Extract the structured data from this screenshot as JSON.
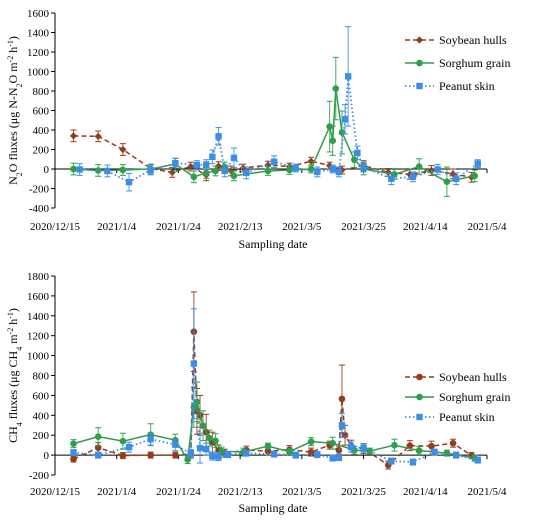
{
  "chart_data": [
    {
      "type": "line",
      "title": "",
      "xlabel": "Sampling date",
      "ylabel": [
        "N",
        "2",
        "O fluxes (μg N-N",
        "2",
        "O m",
        "-2",
        " h",
        "-1",
        ")"
      ],
      "x_type": "date",
      "x_ticks": [
        "2020/12/15",
        "2021/1/4",
        "2021/1/24",
        "2021/2/13",
        "2021/3/5",
        "2021/3/25",
        "2021/4/14",
        "2021/5/4"
      ],
      "xlim": [
        "2020/12/15",
        "2021/5/4"
      ],
      "ylim": [
        -400,
        1600
      ],
      "y_ticks": [
        -400,
        -200,
        0,
        200,
        400,
        600,
        800,
        1000,
        1200,
        1400,
        1600
      ],
      "grid": false,
      "legend_position": "top-right",
      "series": [
        {
          "name": "Soybean hulls",
          "color": "#943C1B",
          "marker": "diamond",
          "line": "dashed",
          "x": [
            "2020/12/21",
            "2020/12/29",
            "2021/1/6",
            "2021/1/15",
            "2021/1/22",
            "2021/1/28",
            "2021/2/2",
            "2021/2/6",
            "2021/2/10",
            "2021/2/14",
            "2021/2/22",
            "2021/3/1",
            "2021/3/8",
            "2021/3/14",
            "2021/3/18",
            "2021/3/25",
            "2021/4/2",
            "2021/4/9",
            "2021/4/16",
            "2021/4/23",
            "2021/4/29"
          ],
          "y": [
            340,
            335,
            200,
            5,
            -35,
            25,
            -60,
            30,
            -20,
            10,
            40,
            25,
            80,
            35,
            -10,
            35,
            -35,
            -55,
            -15,
            -50,
            -85
          ],
          "err": [
            60,
            55,
            60,
            40,
            50,
            45,
            60,
            45,
            50,
            40,
            40,
            35,
            40,
            35,
            40,
            50,
            40,
            50,
            50,
            50,
            50
          ]
        },
        {
          "name": "Sorghum grain",
          "color": "#2E9E4B",
          "marker": "circle",
          "line": "solid",
          "x": [
            "2020/12/21",
            "2020/12/29",
            "2021/1/6",
            "2021/1/15",
            "2021/1/23",
            "2021/1/29",
            "2021/2/2",
            "2021/2/5",
            "2021/2/8",
            "2021/2/11",
            "2021/2/22",
            "2021/3/1",
            "2021/3/8",
            "2021/3/14",
            "2021/3/15",
            "2021/3/16",
            "2021/3/18",
            "2021/3/22",
            "2021/3/25",
            "2021/4/4",
            "2021/4/12",
            "2021/4/21",
            "2021/4/30"
          ],
          "y": [
            0,
            -15,
            -10,
            0,
            50,
            -80,
            -40,
            -20,
            20,
            -70,
            -20,
            -10,
            0,
            435,
            290,
            825,
            375,
            95,
            0,
            -55,
            25,
            -130,
            -70
          ],
          "err": [
            60,
            60,
            55,
            50,
            60,
            60,
            55,
            50,
            50,
            50,
            45,
            45,
            40,
            260,
            150,
            320,
            220,
            80,
            60,
            50,
            80,
            150,
            60
          ]
        },
        {
          "name": "Peanut skin",
          "color": "#3C8DE6",
          "marker": "square",
          "line": "dotted",
          "x": [
            "2020/12/23",
            "2021/1/1",
            "2021/1/8",
            "2021/1/15",
            "2021/1/23",
            "2021/1/30",
            "2021/2/2",
            "2021/2/4",
            "2021/2/6",
            "2021/2/8",
            "2021/2/11",
            "2021/2/15",
            "2021/2/24",
            "2021/3/3",
            "2021/3/10",
            "2021/3/15",
            "2021/3/17",
            "2021/3/19",
            "2021/3/20",
            "2021/3/23",
            "2021/3/25",
            "2021/4/3",
            "2021/4/10",
            "2021/4/18",
            "2021/4/24",
            "2021/5/1"
          ],
          "y": [
            -5,
            -20,
            -135,
            -10,
            60,
            40,
            45,
            125,
            335,
            -20,
            115,
            -40,
            75,
            10,
            -30,
            0,
            -30,
            510,
            950,
            165,
            20,
            -100,
            -80,
            -5,
            -100,
            55
          ],
          "err": [
            60,
            60,
            90,
            50,
            50,
            45,
            50,
            70,
            90,
            60,
            100,
            60,
            60,
            40,
            50,
            40,
            50,
            150,
            510,
            70,
            50,
            60,
            50,
            50,
            60,
            40
          ]
        }
      ]
    },
    {
      "type": "line",
      "title": "",
      "xlabel": "Sampling date",
      "ylabel": [
        "CH",
        "4",
        " fluxes (μg CH",
        "4",
        " m",
        "-2",
        " h",
        "-1",
        ")"
      ],
      "x_type": "date",
      "x_ticks": [
        "2020/12/15",
        "2021/1/4",
        "2021/1/24",
        "2021/2/13",
        "2021/3/5",
        "2021/3/25",
        "2021/4/14",
        "2021/5/4"
      ],
      "xlim": [
        "2020/12/15",
        "2021/5/4"
      ],
      "ylim": [
        -200,
        1800
      ],
      "y_ticks": [
        -200,
        0,
        200,
        400,
        600,
        800,
        1000,
        1200,
        1400,
        1600,
        1800
      ],
      "grid": false,
      "legend_position": "right",
      "series": [
        {
          "name": "Soybean hulls",
          "color": "#943C1B",
          "marker": "circle",
          "line": "dashed",
          "x": [
            "2020/12/21",
            "2020/12/29",
            "2021/1/6",
            "2021/1/15",
            "2021/1/23",
            "2021/1/28",
            "2021/1/29",
            "2021/1/30",
            "2021/1/31",
            "2021/2/2",
            "2021/2/4",
            "2021/2/6",
            "2021/2/8",
            "2021/2/15",
            "2021/2/22",
            "2021/3/1",
            "2021/3/8",
            "2021/3/14",
            "2021/3/17",
            "2021/3/18",
            "2021/3/19",
            "2021/3/21",
            "2021/3/25",
            "2021/4/2",
            "2021/4/9",
            "2021/4/16",
            "2021/4/23",
            "2021/4/29"
          ],
          "y": [
            -40,
            75,
            -5,
            0,
            0,
            10,
            1240,
            440,
            400,
            230,
            130,
            50,
            20,
            50,
            40,
            55,
            30,
            100,
            50,
            565,
            200,
            90,
            65,
            -100,
            95,
            90,
            120,
            -5
          ],
          "err": [
            30,
            50,
            30,
            30,
            30,
            40,
            400,
            230,
            200,
            180,
            100,
            50,
            40,
            40,
            40,
            40,
            40,
            40,
            40,
            340,
            100,
            60,
            50,
            40,
            50,
            50,
            40,
            30
          ]
        },
        {
          "name": "Sorghum grain",
          "color": "#2E9E4B",
          "marker": "circle",
          "line": "solid",
          "x": [
            "2020/12/21",
            "2020/12/29",
            "2021/1/6",
            "2021/1/15",
            "2021/1/23",
            "2021/1/27",
            "2021/1/29",
            "2021/1/30",
            "2021/2/1",
            "2021/2/3",
            "2021/2/5",
            "2021/2/7",
            "2021/2/14",
            "2021/2/22",
            "2021/3/1",
            "2021/3/8",
            "2021/3/15",
            "2021/3/22",
            "2021/3/27",
            "2021/4/4",
            "2021/4/12",
            "2021/4/21",
            "2021/4/30"
          ],
          "y": [
            115,
            185,
            140,
            205,
            150,
            -45,
            480,
            535,
            295,
            170,
            145,
            40,
            30,
            90,
            35,
            135,
            120,
            50,
            40,
            100,
            45,
            20,
            -30
          ],
          "err": [
            40,
            90,
            80,
            110,
            60,
            40,
            200,
            200,
            150,
            80,
            70,
            40,
            40,
            30,
            30,
            40,
            60,
            40,
            30,
            60,
            40,
            30,
            30
          ]
        },
        {
          "name": "Peanut skin",
          "color": "#3C8DE6",
          "marker": "square",
          "line": "dotted",
          "x": [
            "2020/12/21",
            "2020/12/29",
            "2021/1/8",
            "2021/1/15",
            "2021/1/23",
            "2021/1/28",
            "2021/1/29",
            "2021/1/31",
            "2021/2/2",
            "2021/2/4",
            "2021/2/6",
            "2021/2/9",
            "2021/2/15",
            "2021/2/24",
            "2021/3/3",
            "2021/3/10",
            "2021/3/15",
            "2021/3/17",
            "2021/3/18",
            "2021/3/21",
            "2021/3/25",
            "2021/4/3",
            "2021/4/10",
            "2021/4/17",
            "2021/4/24",
            "2021/5/1"
          ],
          "y": [
            25,
            0,
            80,
            160,
            105,
            15,
            920,
            70,
            60,
            -10,
            -15,
            5,
            20,
            10,
            0,
            5,
            -30,
            -25,
            300,
            80,
            70,
            -60,
            -70,
            30,
            0,
            -50
          ],
          "err": [
            30,
            30,
            50,
            60,
            60,
            40,
            550,
            150,
            60,
            40,
            40,
            30,
            30,
            30,
            30,
            30,
            30,
            30,
            120,
            50,
            40,
            30,
            30,
            30,
            30,
            30
          ]
        }
      ]
    }
  ]
}
